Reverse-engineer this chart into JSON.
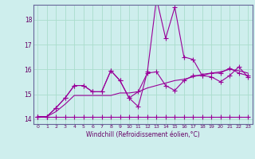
{
  "xlabel": "Windchill (Refroidissement éolien,°C)",
  "bg_color": "#ceeeed",
  "line_color": "#990099",
  "grid_color": "#aaddcc",
  "text_color": "#660066",
  "spine_color": "#666699",
  "xlim": [
    -0.5,
    23.5
  ],
  "ylim": [
    13.8,
    18.6
  ],
  "yticks": [
    14,
    15,
    16,
    17,
    18
  ],
  "xticks": [
    0,
    1,
    2,
    3,
    4,
    5,
    6,
    7,
    8,
    9,
    10,
    11,
    12,
    13,
    14,
    15,
    16,
    17,
    18,
    19,
    20,
    21,
    22,
    23
  ],
  "series": [
    [
      14.1,
      14.1,
      14.1,
      14.1,
      14.1,
      14.1,
      14.1,
      14.1,
      14.1,
      14.1,
      14.1,
      14.1,
      14.1,
      14.1,
      14.1,
      14.1,
      14.1,
      14.1,
      14.1,
      14.1,
      14.1,
      14.1,
      14.1,
      14.1
    ],
    [
      14.1,
      14.1,
      14.3,
      14.6,
      14.95,
      14.95,
      14.95,
      14.95,
      14.95,
      15.05,
      15.05,
      15.1,
      15.25,
      15.35,
      15.45,
      15.55,
      15.6,
      15.7,
      15.8,
      15.85,
      15.9,
      16.0,
      15.95,
      15.85
    ],
    [
      14.1,
      14.1,
      14.45,
      14.85,
      15.35,
      15.35,
      15.1,
      15.1,
      15.95,
      15.55,
      14.85,
      14.5,
      15.9,
      18.85,
      17.25,
      18.5,
      16.5,
      16.4,
      15.75,
      15.7,
      15.5,
      15.75,
      16.1,
      15.7
    ],
    [
      14.1,
      14.1,
      14.45,
      14.85,
      15.35,
      15.35,
      15.1,
      15.1,
      15.95,
      15.55,
      14.85,
      15.1,
      15.85,
      15.9,
      15.35,
      15.15,
      15.55,
      15.75,
      15.75,
      15.85,
      15.85,
      16.05,
      15.85,
      15.75
    ]
  ],
  "series_styles": [
    {
      "marker": "+",
      "linewidth": 0.8,
      "markersize": 4,
      "has_marker": true
    },
    {
      "marker": "+",
      "linewidth": 0.8,
      "markersize": 4,
      "has_marker": false
    },
    {
      "marker": "+",
      "linewidth": 0.8,
      "markersize": 4,
      "has_marker": true
    },
    {
      "marker": "+",
      "linewidth": 0.8,
      "markersize": 4,
      "has_marker": true
    }
  ],
  "figwidth": 3.2,
  "figheight": 2.0,
  "dpi": 100
}
